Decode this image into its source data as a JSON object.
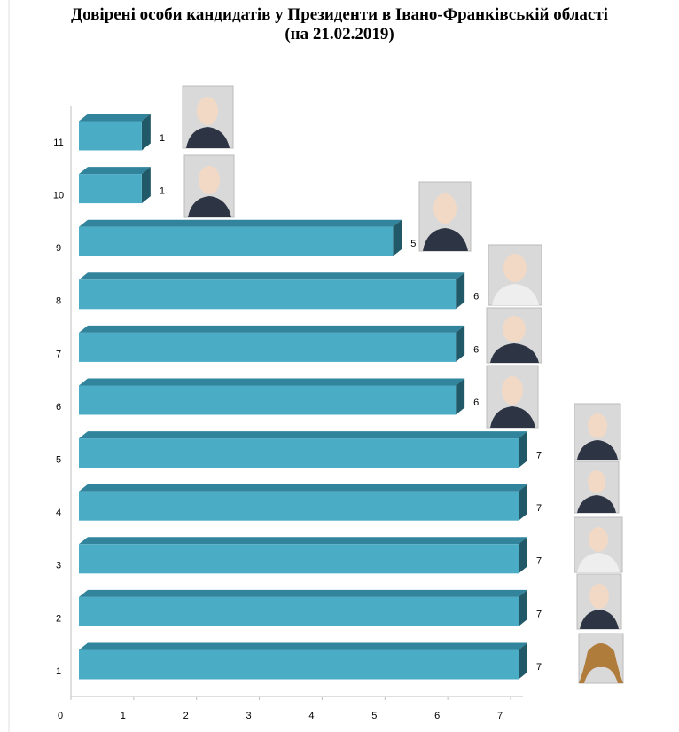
{
  "chart_data": {
    "type": "bar3d",
    "title": "Довірені особи кандидатів у Президенти в Івано-Франківській області",
    "subtitle": "(на 21.02.2019)",
    "categories": [
      "1",
      "2",
      "3",
      "4",
      "5",
      "6",
      "7",
      "8",
      "9",
      "10",
      "11"
    ],
    "values": [
      7,
      7,
      7,
      7,
      7,
      6,
      6,
      6,
      5,
      1,
      1
    ],
    "color": "#4bacc6",
    "xlim": [
      0,
      7
    ],
    "xticks": [
      0,
      1,
      2,
      3,
      4,
      5,
      6,
      7
    ]
  }
}
